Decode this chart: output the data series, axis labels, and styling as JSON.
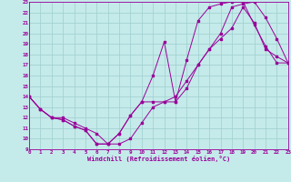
{
  "xlabel": "Windchill (Refroidissement éolien,°C)",
  "xlim": [
    0,
    23
  ],
  "ylim": [
    9,
    23
  ],
  "xticks": [
    0,
    1,
    2,
    3,
    4,
    5,
    6,
    7,
    8,
    9,
    10,
    11,
    12,
    13,
    14,
    15,
    16,
    17,
    18,
    19,
    20,
    21,
    22,
    23
  ],
  "yticks": [
    9,
    10,
    11,
    12,
    13,
    14,
    15,
    16,
    17,
    18,
    19,
    20,
    21,
    22,
    23
  ],
  "bg_color": "#c5eaea",
  "line_color": "#990099",
  "grid_color": "#9ecece",
  "line1_x": [
    0,
    1,
    2,
    3,
    4,
    5,
    6,
    7,
    8,
    9,
    10,
    11,
    12,
    13,
    14,
    15,
    16,
    17,
    18,
    19,
    20,
    21,
    22,
    23
  ],
  "line1_y": [
    14,
    12.8,
    12.0,
    11.8,
    11.2,
    10.8,
    9.5,
    9.5,
    10.5,
    12.2,
    13.5,
    16.0,
    19.2,
    13.5,
    17.5,
    21.2,
    22.5,
    22.8,
    23.0,
    23.0,
    20.8,
    18.8,
    17.2,
    17.2
  ],
  "line2_x": [
    0,
    1,
    2,
    3,
    4,
    5,
    6,
    7,
    8,
    9,
    10,
    11,
    12,
    13,
    14,
    15,
    16,
    17,
    18,
    19,
    20,
    21,
    22,
    23
  ],
  "line2_y": [
    14,
    12.8,
    12.0,
    11.8,
    11.2,
    10.8,
    9.5,
    9.5,
    10.5,
    12.2,
    13.5,
    13.5,
    13.5,
    13.5,
    14.8,
    17.0,
    18.5,
    19.5,
    20.5,
    22.5,
    21.0,
    18.5,
    17.8,
    17.2
  ],
  "line3_x": [
    0,
    1,
    2,
    3,
    4,
    5,
    6,
    7,
    8,
    9,
    10,
    11,
    12,
    13,
    14,
    15,
    16,
    17,
    18,
    19,
    20,
    21,
    22,
    23
  ],
  "line3_y": [
    14,
    12.8,
    12.0,
    12.0,
    11.5,
    11.0,
    10.5,
    9.5,
    9.5,
    10.0,
    11.5,
    13.0,
    13.5,
    14.0,
    15.5,
    17.0,
    18.5,
    20.0,
    22.5,
    22.8,
    23.0,
    21.5,
    19.5,
    17.2
  ]
}
